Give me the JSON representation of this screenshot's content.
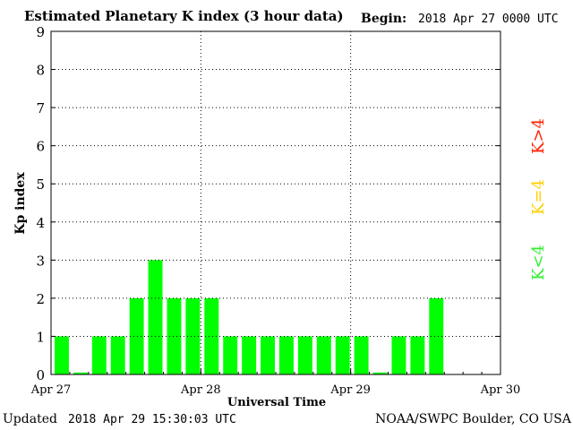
{
  "header": {
    "title": "Estimated Planetary K index (3 hour data)",
    "begin_label": "Begin:",
    "begin_value": "2018 Apr 27 0000 UTC"
  },
  "footer": {
    "updated_label": "Updated",
    "updated_value": "2018 Apr 29 15:30:03 UTC",
    "credit": "NOAA/SWPC Boulder, CO USA"
  },
  "legend": {
    "high": "K>4",
    "equal": "K=4",
    "low": "K<4"
  },
  "colors": {
    "bar": "#00ff00",
    "legend_high": "#ff2000",
    "legend_equal": "#ffd000",
    "legend_low": "#33ee33"
  },
  "chart_data": {
    "type": "bar",
    "title": "Estimated Planetary K index (3 hour data)",
    "xlabel": "Universal Time",
    "ylabel": "Kp index",
    "ylim": [
      0,
      9
    ],
    "yticks": [
      0,
      1,
      2,
      3,
      4,
      5,
      6,
      7,
      8,
      9
    ],
    "xticks": [
      "Apr 27",
      "Apr 28",
      "Apr 29",
      "Apr 30"
    ],
    "interval_hours": 3,
    "grid": true,
    "values": [
      1,
      0.05,
      1,
      1,
      2,
      3,
      2,
      2,
      2,
      1,
      1,
      1,
      1,
      1,
      1,
      1,
      1,
      0.05,
      1,
      1,
      2
    ]
  }
}
